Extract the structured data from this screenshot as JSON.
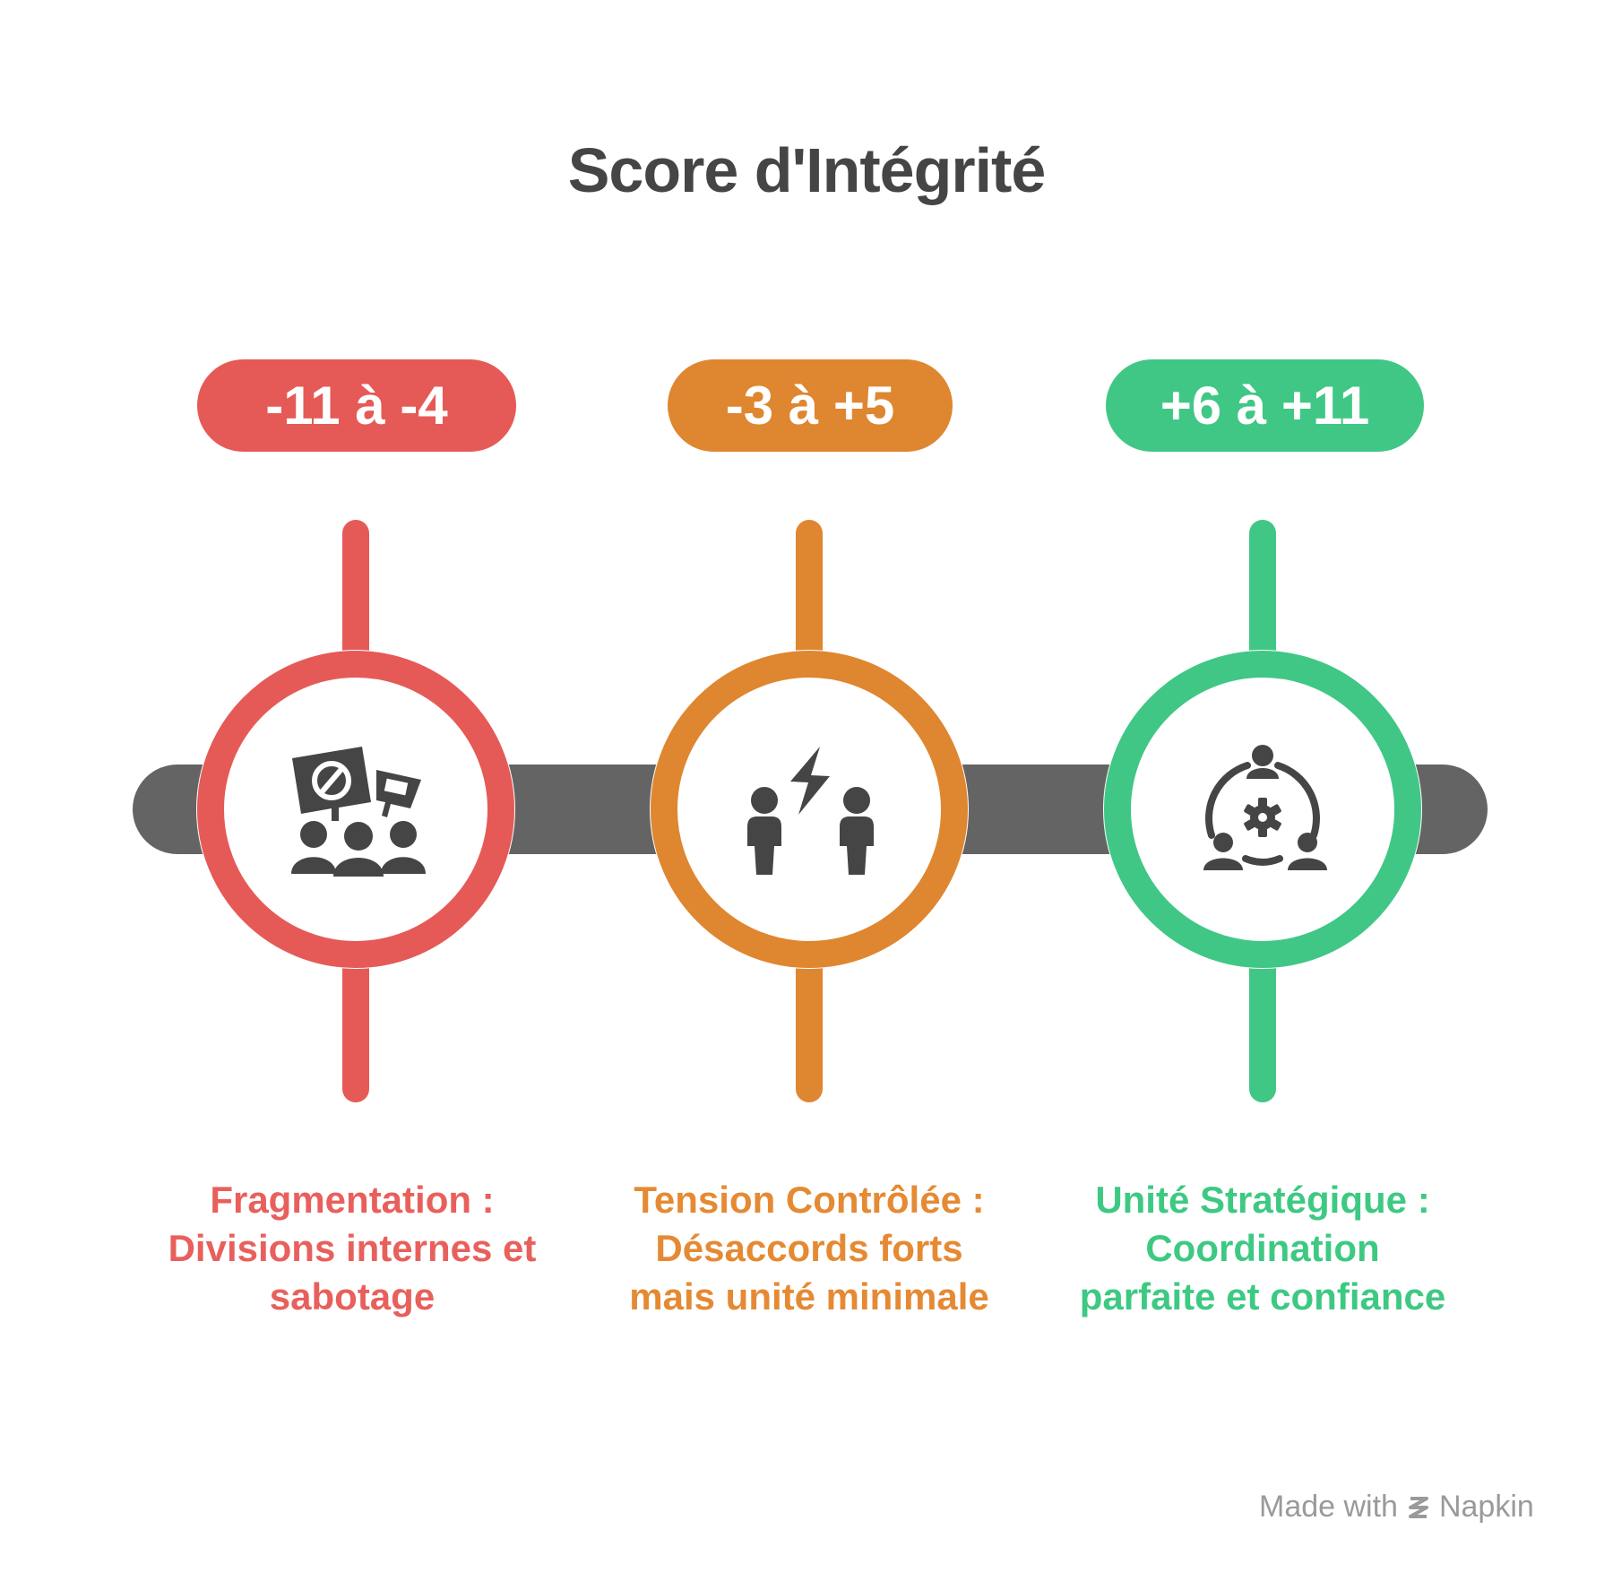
{
  "title": "Score d'Intégrité",
  "stages": [
    {
      "range": "-11 à -4",
      "icon": "protest-group-icon",
      "color": "#e55a57",
      "text_color": "#e8605c",
      "description": [
        "Fragmentation :",
        "Divisions internes et",
        "sabotage"
      ]
    },
    {
      "range": "-3 à +5",
      "icon": "conflict-people-icon",
      "color": "#df8630",
      "text_color": "#e58a33",
      "description": [
        "Tension Contrôlée :",
        "Désaccords forts",
        "mais unité minimale"
      ]
    },
    {
      "range": "+6 à +11",
      "icon": "team-coordination-icon",
      "color": "#40c785",
      "text_color": "#3ec983",
      "description": [
        "Unité Stratégique :",
        "Coordination",
        "parfaite et confiance"
      ]
    }
  ],
  "colors": {
    "track": "#646464",
    "icon": "#454545",
    "title": "#454545"
  },
  "footer": {
    "made_with": "Made with",
    "brand": "Napkin"
  }
}
